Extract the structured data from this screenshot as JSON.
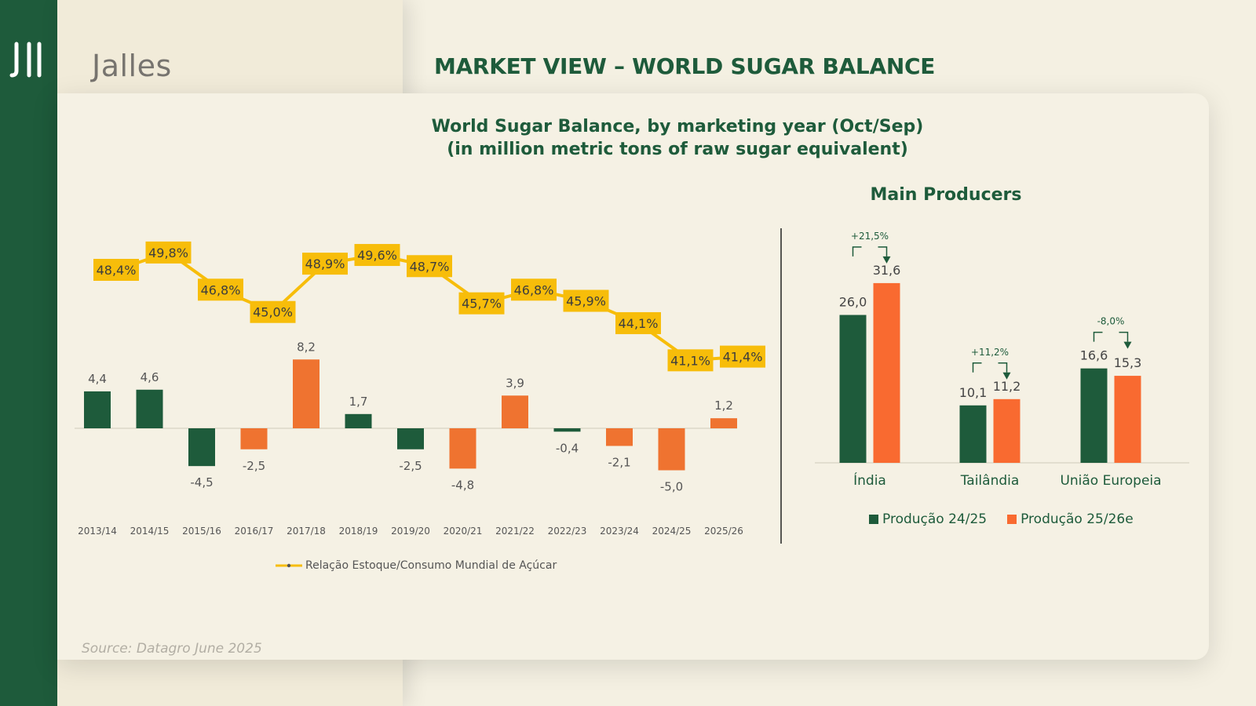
{
  "brand": {
    "name": "Jalles"
  },
  "slide_title": "MARKET VIEW – WORLD SUGAR BALANCE",
  "source": "Source: Datagro June 2025",
  "colors": {
    "green": "#1e5b3b",
    "orange": "#ef7330",
    "orange_bright": "#f96a30",
    "yellow": "#f7bd0a",
    "sidebar": "#1e5b3b"
  },
  "chart_data": [
    {
      "type": "bar",
      "title": "World Sugar Balance, by marketing year (Oct/Sep)",
      "subtitle": "(in million metric tons of raw sugar equivalent)",
      "categories": [
        "2013/14",
        "2014/15",
        "2015/16",
        "2016/17",
        "2017/18",
        "2018/19",
        "2019/20",
        "2020/21",
        "2021/22",
        "2022/23",
        "2023/24",
        "2024/25",
        "2025/26"
      ],
      "values": [
        4.4,
        4.6,
        -4.5,
        -2.5,
        8.2,
        1.7,
        -2.5,
        -4.8,
        3.9,
        -0.4,
        -2.1,
        -5.0,
        1.2
      ],
      "value_labels": [
        "4,4",
        "4,6",
        "-4,5",
        "-2,5",
        "8,2",
        "1,7",
        "-2,5",
        "-4,8",
        "3,9",
        "-0,4",
        "-2,1",
        "-5,0",
        "1,2"
      ],
      "bar_colors": [
        "green",
        "green",
        "green",
        "orange",
        "orange",
        "green",
        "green",
        "orange",
        "orange",
        "green",
        "orange",
        "orange",
        "orange"
      ],
      "line_series": {
        "name": "Relação Estoque/Consumo Mundial de Açúcar",
        "values": [
          48.4,
          49.8,
          46.8,
          45.0,
          48.9,
          49.6,
          48.7,
          45.7,
          46.8,
          45.9,
          44.1,
          41.1,
          41.4
        ],
        "labels": [
          "48,4%",
          "49,8%",
          "46,8%",
          "45,0%",
          "48,9%",
          "49,6%",
          "48,7%",
          "45,7%",
          "46,8%",
          "45,9%",
          "44,1%",
          "41,1%",
          "41,4%"
        ]
      },
      "grid": false,
      "legend_position": "bottom"
    },
    {
      "type": "bar",
      "title": "Main Producers",
      "categories": [
        "Índia",
        "Tailândia",
        "União Europeia"
      ],
      "series": [
        {
          "name": "Produção 24/25",
          "values": [
            26.0,
            10.1,
            16.6
          ],
          "labels": [
            "26,0",
            "10,1",
            "16,6"
          ]
        },
        {
          "name": "Produção 25/26e",
          "values": [
            31.6,
            11.2,
            15.3
          ],
          "labels": [
            "31,6",
            "11,2",
            "15,3"
          ]
        }
      ],
      "changes": [
        "+21,5%",
        "+11,2%",
        "-8,0%"
      ],
      "legend_position": "bottom"
    }
  ]
}
